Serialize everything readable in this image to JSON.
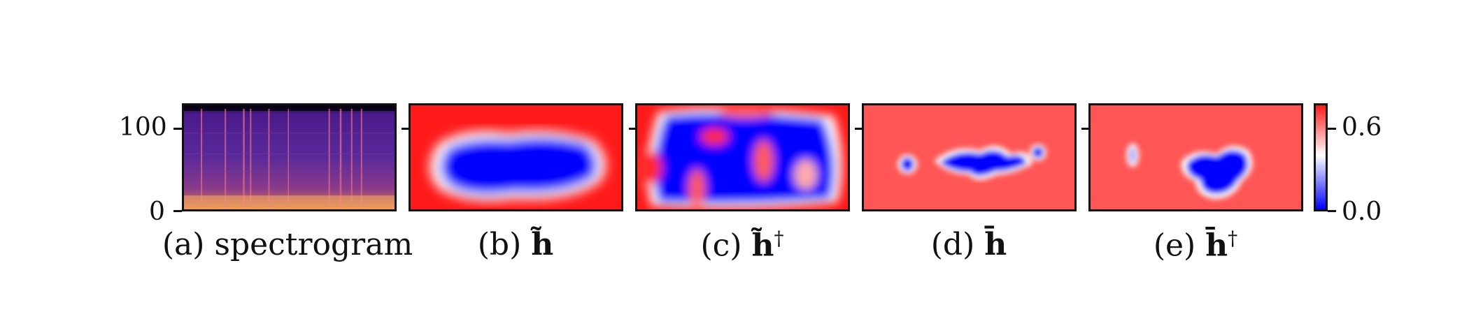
{
  "figure": {
    "panels": [
      {
        "id": "a",
        "caption": "(a) spectrogram"
      },
      {
        "id": "b",
        "caption_prefix": "(b) ",
        "symbol": "h̃",
        "superscript": ""
      },
      {
        "id": "c",
        "caption_prefix": "(c) ",
        "symbol": "h̃",
        "superscript": "†"
      },
      {
        "id": "d",
        "caption_prefix": "(d) ",
        "symbol": "h̄",
        "superscript": ""
      },
      {
        "id": "e",
        "caption_prefix": "(e) ",
        "symbol": "h̄",
        "superscript": "†"
      }
    ],
    "y_axis": {
      "ticks": [
        "100",
        "0"
      ]
    },
    "colorbar": {
      "ticks": [
        "0.6",
        "0.0"
      ],
      "colormap": "bwr",
      "high_color": "#ff1a1a",
      "low_color": "#0000ff"
    }
  }
}
